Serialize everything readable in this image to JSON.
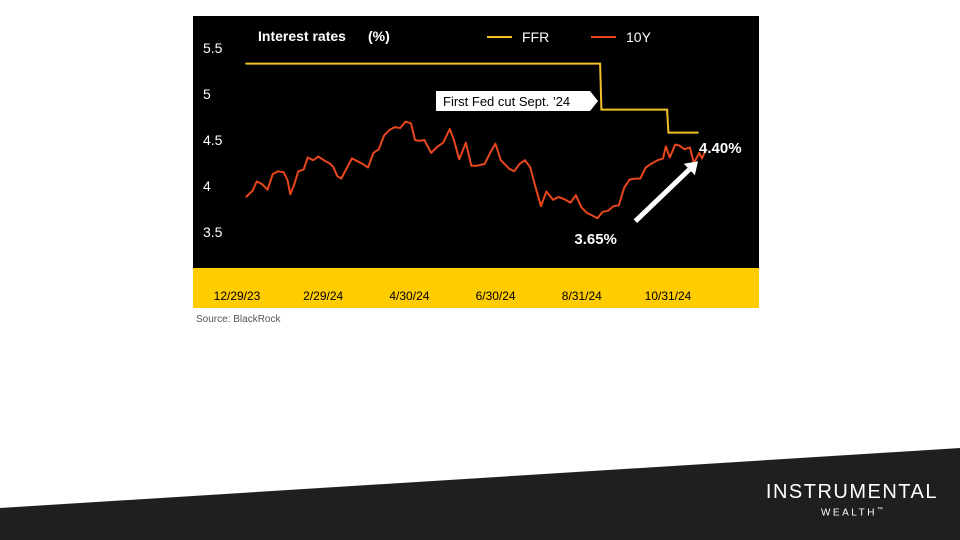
{
  "chart_data": {
    "type": "line",
    "title": "Interest rates",
    "title_unit": "(%)",
    "y_ticks": [
      "5.5",
      "5",
      "4.5",
      "4",
      "3.5"
    ],
    "y_tick_values": [
      5.5,
      5.0,
      4.5,
      4.0,
      3.5
    ],
    "ylim": [
      3.2,
      5.7
    ],
    "x_ticks": [
      "12/29/23",
      "2/29/24",
      "4/30/24",
      "6/30/24",
      "8/31/24",
      "10/31/24"
    ],
    "x_range": [
      "2023-12-29",
      "2024-12-06"
    ],
    "grid": false,
    "legend_position": "top",
    "series": [
      {
        "name": "FFR",
        "color": "#f2c029",
        "points": [
          [
            "2023-12-29",
            5.33
          ],
          [
            "2024-09-18",
            5.33
          ],
          [
            "2024-09-19",
            4.83
          ],
          [
            "2024-11-07",
            4.83
          ],
          [
            "2024-11-08",
            4.58
          ],
          [
            "2024-11-30",
            4.58
          ]
        ]
      },
      {
        "name": "10Y",
        "color": "#e8461e",
        "points": [
          [
            "2023-12-29",
            3.88
          ],
          [
            "2024-01-03",
            3.95
          ],
          [
            "2024-01-06",
            4.05
          ],
          [
            "2024-01-10",
            4.02
          ],
          [
            "2024-01-14",
            3.96
          ],
          [
            "2024-01-18",
            4.13
          ],
          [
            "2024-01-22",
            4.16
          ],
          [
            "2024-01-26",
            4.15
          ],
          [
            "2024-01-29",
            4.06
          ],
          [
            "2024-01-31",
            3.91
          ],
          [
            "2024-02-03",
            4.02
          ],
          [
            "2024-02-06",
            4.16
          ],
          [
            "2024-02-10",
            4.18
          ],
          [
            "2024-02-13",
            4.31
          ],
          [
            "2024-02-17",
            4.28
          ],
          [
            "2024-02-21",
            4.32
          ],
          [
            "2024-02-25",
            4.28
          ],
          [
            "2024-02-29",
            4.25
          ],
          [
            "2024-03-03",
            4.21
          ],
          [
            "2024-03-06",
            4.11
          ],
          [
            "2024-03-09",
            4.08
          ],
          [
            "2024-03-13",
            4.19
          ],
          [
            "2024-03-17",
            4.3
          ],
          [
            "2024-03-21",
            4.27
          ],
          [
            "2024-03-25",
            4.24
          ],
          [
            "2024-03-29",
            4.2
          ],
          [
            "2024-04-02",
            4.36
          ],
          [
            "2024-04-06",
            4.4
          ],
          [
            "2024-04-10",
            4.55
          ],
          [
            "2024-04-14",
            4.61
          ],
          [
            "2024-04-18",
            4.64
          ],
          [
            "2024-04-22",
            4.63
          ],
          [
            "2024-04-26",
            4.7
          ],
          [
            "2024-04-30",
            4.68
          ],
          [
            "2024-05-03",
            4.5
          ],
          [
            "2024-05-06",
            4.49
          ],
          [
            "2024-05-10",
            4.5
          ],
          [
            "2024-05-15",
            4.36
          ],
          [
            "2024-05-20",
            4.43
          ],
          [
            "2024-05-24",
            4.47
          ],
          [
            "2024-05-29",
            4.62
          ],
          [
            "2024-06-01",
            4.5
          ],
          [
            "2024-06-05",
            4.29
          ],
          [
            "2024-06-10",
            4.47
          ],
          [
            "2024-06-14",
            4.22
          ],
          [
            "2024-06-18",
            4.22
          ],
          [
            "2024-06-24",
            4.24
          ],
          [
            "2024-06-28",
            4.36
          ],
          [
            "2024-07-02",
            4.46
          ],
          [
            "2024-07-06",
            4.28
          ],
          [
            "2024-07-12",
            4.19
          ],
          [
            "2024-07-16",
            4.16
          ],
          [
            "2024-07-20",
            4.24
          ],
          [
            "2024-07-24",
            4.28
          ],
          [
            "2024-07-28",
            4.2
          ],
          [
            "2024-08-01",
            3.98
          ],
          [
            "2024-08-05",
            3.78
          ],
          [
            "2024-08-09",
            3.94
          ],
          [
            "2024-08-14",
            3.85
          ],
          [
            "2024-08-18",
            3.88
          ],
          [
            "2024-08-22",
            3.86
          ],
          [
            "2024-08-27",
            3.82
          ],
          [
            "2024-08-31",
            3.9
          ],
          [
            "2024-09-04",
            3.77
          ],
          [
            "2024-09-08",
            3.71
          ],
          [
            "2024-09-12",
            3.68
          ],
          [
            "2024-09-16",
            3.65
          ],
          [
            "2024-09-20",
            3.72
          ],
          [
            "2024-09-24",
            3.73
          ],
          [
            "2024-09-28",
            3.78
          ],
          [
            "2024-10-02",
            3.79
          ],
          [
            "2024-10-06",
            3.98
          ],
          [
            "2024-10-10",
            4.07
          ],
          [
            "2024-10-14",
            4.08
          ],
          [
            "2024-10-18",
            4.08
          ],
          [
            "2024-10-22",
            4.2
          ],
          [
            "2024-10-26",
            4.24
          ],
          [
            "2024-10-31",
            4.28
          ],
          [
            "2024-11-04",
            4.3
          ],
          [
            "2024-11-06",
            4.43
          ],
          [
            "2024-11-09",
            4.31
          ],
          [
            "2024-11-13",
            4.45
          ],
          [
            "2024-11-16",
            4.44
          ],
          [
            "2024-11-20",
            4.4
          ],
          [
            "2024-11-24",
            4.42
          ],
          [
            "2024-11-27",
            4.25
          ],
          [
            "2024-12-01",
            4.36
          ],
          [
            "2024-12-03",
            4.3
          ],
          [
            "2024-12-06",
            4.4
          ]
        ]
      }
    ],
    "annotations": {
      "callout": {
        "text": "First Fed cut Sept. ’24",
        "date": "2024-09-18",
        "value": 4.93
      },
      "low": {
        "text": "3.65%",
        "date": "2024-09-16",
        "value": 3.65
      },
      "latest": {
        "text": "4.40%",
        "date": "2024-12-06",
        "value": 4.4
      }
    },
    "colors": {
      "background": "#000000",
      "axis_band": "#ffcc00",
      "text": "#ffffff",
      "axis_tick_text": "#000000",
      "ffr": "#f2c029",
      "ten_year": "#e8461e"
    }
  },
  "source": "Source: BlackRock",
  "brand": {
    "name": "INSTRUMENTAL",
    "sub": "WEALTH",
    "mark": "™"
  },
  "footer": {
    "color": "#1f1f1f"
  }
}
